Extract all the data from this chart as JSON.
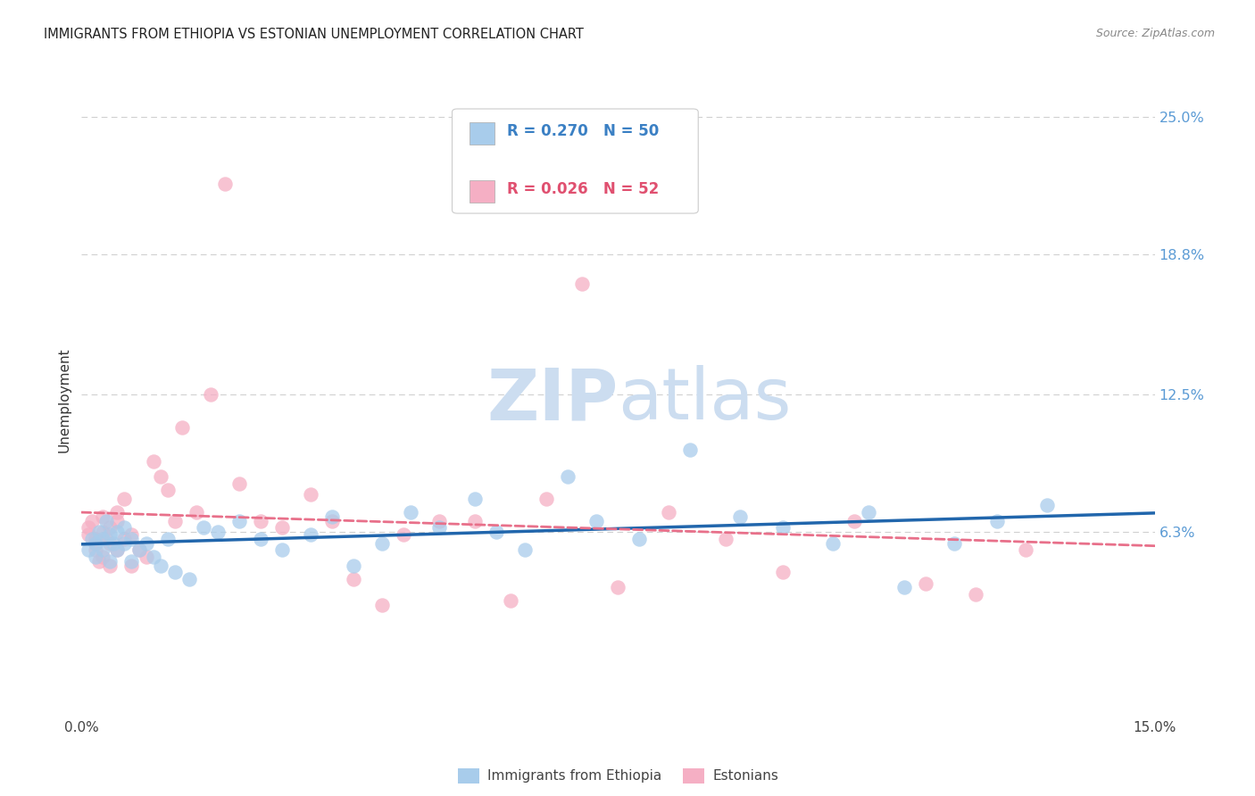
{
  "title": "IMMIGRANTS FROM ETHIOPIA VS ESTONIAN UNEMPLOYMENT CORRELATION CHART",
  "source": "Source: ZipAtlas.com",
  "ylabel": "Unemployment",
  "x_min": 0.0,
  "x_max": 0.15,
  "y_min": -0.02,
  "y_max": 0.265,
  "x_ticks": [
    0.0,
    0.05,
    0.1,
    0.15
  ],
  "x_tick_labels": [
    "0.0%",
    "",
    "",
    "15.0%"
  ],
  "y_ticks_right": [
    0.063,
    0.125,
    0.188,
    0.25
  ],
  "y_tick_labels_right": [
    "6.3%",
    "12.5%",
    "18.8%",
    "25.0%"
  ],
  "legend_r1_prefix": "R = ",
  "legend_r1_val": "0.270",
  "legend_n1_prefix": "N = ",
  "legend_n1_val": "50",
  "legend_r2_prefix": "R = ",
  "legend_r2_val": "0.026",
  "legend_n2_prefix": "N = ",
  "legend_n2_val": "52",
  "color_blue": "#a8cceb",
  "color_pink": "#f5afc4",
  "color_line_blue": "#2166ac",
  "color_line_pink": "#e8708a",
  "watermark_zip": "ZIP",
  "watermark_atlas": "atlas",
  "watermark_color": "#ccddf0",
  "blue_x": [
    0.001,
    0.0015,
    0.002,
    0.002,
    0.0025,
    0.003,
    0.003,
    0.0035,
    0.004,
    0.004,
    0.0045,
    0.005,
    0.005,
    0.006,
    0.006,
    0.007,
    0.007,
    0.008,
    0.009,
    0.01,
    0.011,
    0.012,
    0.013,
    0.015,
    0.017,
    0.019,
    0.022,
    0.025,
    0.028,
    0.032,
    0.035,
    0.038,
    0.042,
    0.046,
    0.05,
    0.055,
    0.058,
    0.062,
    0.068,
    0.072,
    0.078,
    0.085,
    0.092,
    0.098,
    0.105,
    0.11,
    0.115,
    0.122,
    0.128,
    0.135
  ],
  "blue_y": [
    0.055,
    0.06,
    0.052,
    0.058,
    0.063,
    0.055,
    0.06,
    0.068,
    0.05,
    0.062,
    0.058,
    0.055,
    0.063,
    0.058,
    0.065,
    0.05,
    0.06,
    0.055,
    0.058,
    0.052,
    0.048,
    0.06,
    0.045,
    0.042,
    0.065,
    0.063,
    0.068,
    0.06,
    0.055,
    0.062,
    0.07,
    0.048,
    0.058,
    0.072,
    0.065,
    0.078,
    0.063,
    0.055,
    0.088,
    0.068,
    0.06,
    0.1,
    0.07,
    0.065,
    0.058,
    0.072,
    0.038,
    0.058,
    0.068,
    0.075
  ],
  "pink_x": [
    0.001,
    0.001,
    0.0015,
    0.002,
    0.002,
    0.002,
    0.0025,
    0.003,
    0.003,
    0.003,
    0.0035,
    0.004,
    0.004,
    0.004,
    0.005,
    0.005,
    0.005,
    0.006,
    0.006,
    0.007,
    0.007,
    0.008,
    0.009,
    0.01,
    0.011,
    0.012,
    0.013,
    0.014,
    0.016,
    0.018,
    0.02,
    0.022,
    0.025,
    0.028,
    0.032,
    0.035,
    0.038,
    0.042,
    0.045,
    0.05,
    0.055,
    0.06,
    0.065,
    0.07,
    0.075,
    0.082,
    0.09,
    0.098,
    0.108,
    0.118,
    0.125,
    0.132
  ],
  "pink_y": [
    0.065,
    0.062,
    0.068,
    0.06,
    0.055,
    0.058,
    0.05,
    0.063,
    0.052,
    0.07,
    0.06,
    0.065,
    0.058,
    0.048,
    0.072,
    0.068,
    0.055,
    0.06,
    0.078,
    0.062,
    0.048,
    0.055,
    0.052,
    0.095,
    0.088,
    0.082,
    0.068,
    0.11,
    0.072,
    0.125,
    0.22,
    0.085,
    0.068,
    0.065,
    0.08,
    0.068,
    0.042,
    0.03,
    0.062,
    0.068,
    0.068,
    0.032,
    0.078,
    0.175,
    0.038,
    0.072,
    0.06,
    0.045,
    0.068,
    0.04,
    0.035,
    0.055
  ]
}
